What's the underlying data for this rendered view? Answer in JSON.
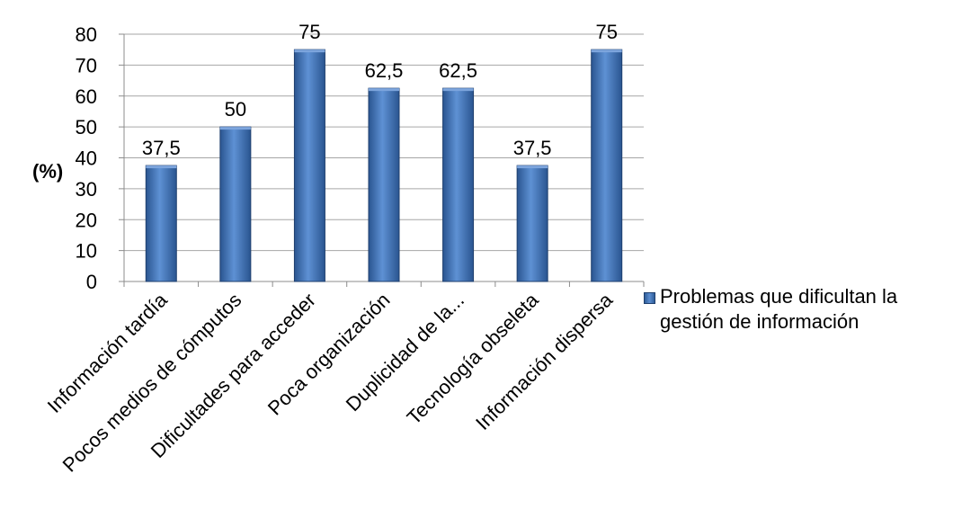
{
  "chart_data": {
    "type": "bar",
    "ylabel": "(%)",
    "xlabel": "",
    "ylim": [
      0,
      80
    ],
    "yticks": [
      "0",
      "10",
      "20",
      "30",
      "40",
      "50",
      "60",
      "70",
      "80"
    ],
    "grid": true,
    "legend_position": "right",
    "categories": [
      "Información tardía",
      "Pocos medios de cómputos",
      "Dificultades para acceder",
      "Poca organización",
      "Duplicidad de la...",
      "Tecnología obseleta",
      "Información dispersa"
    ],
    "series": [
      {
        "name": "Problemas que dificultan la gestión de información",
        "values": [
          37.5,
          50,
          75,
          62.5,
          62.5,
          37.5,
          75
        ],
        "labels": [
          "37,5",
          "50",
          "75",
          "62,5",
          "62,5",
          "37,5",
          "75"
        ],
        "color": "#4a7cc1"
      }
    ]
  }
}
